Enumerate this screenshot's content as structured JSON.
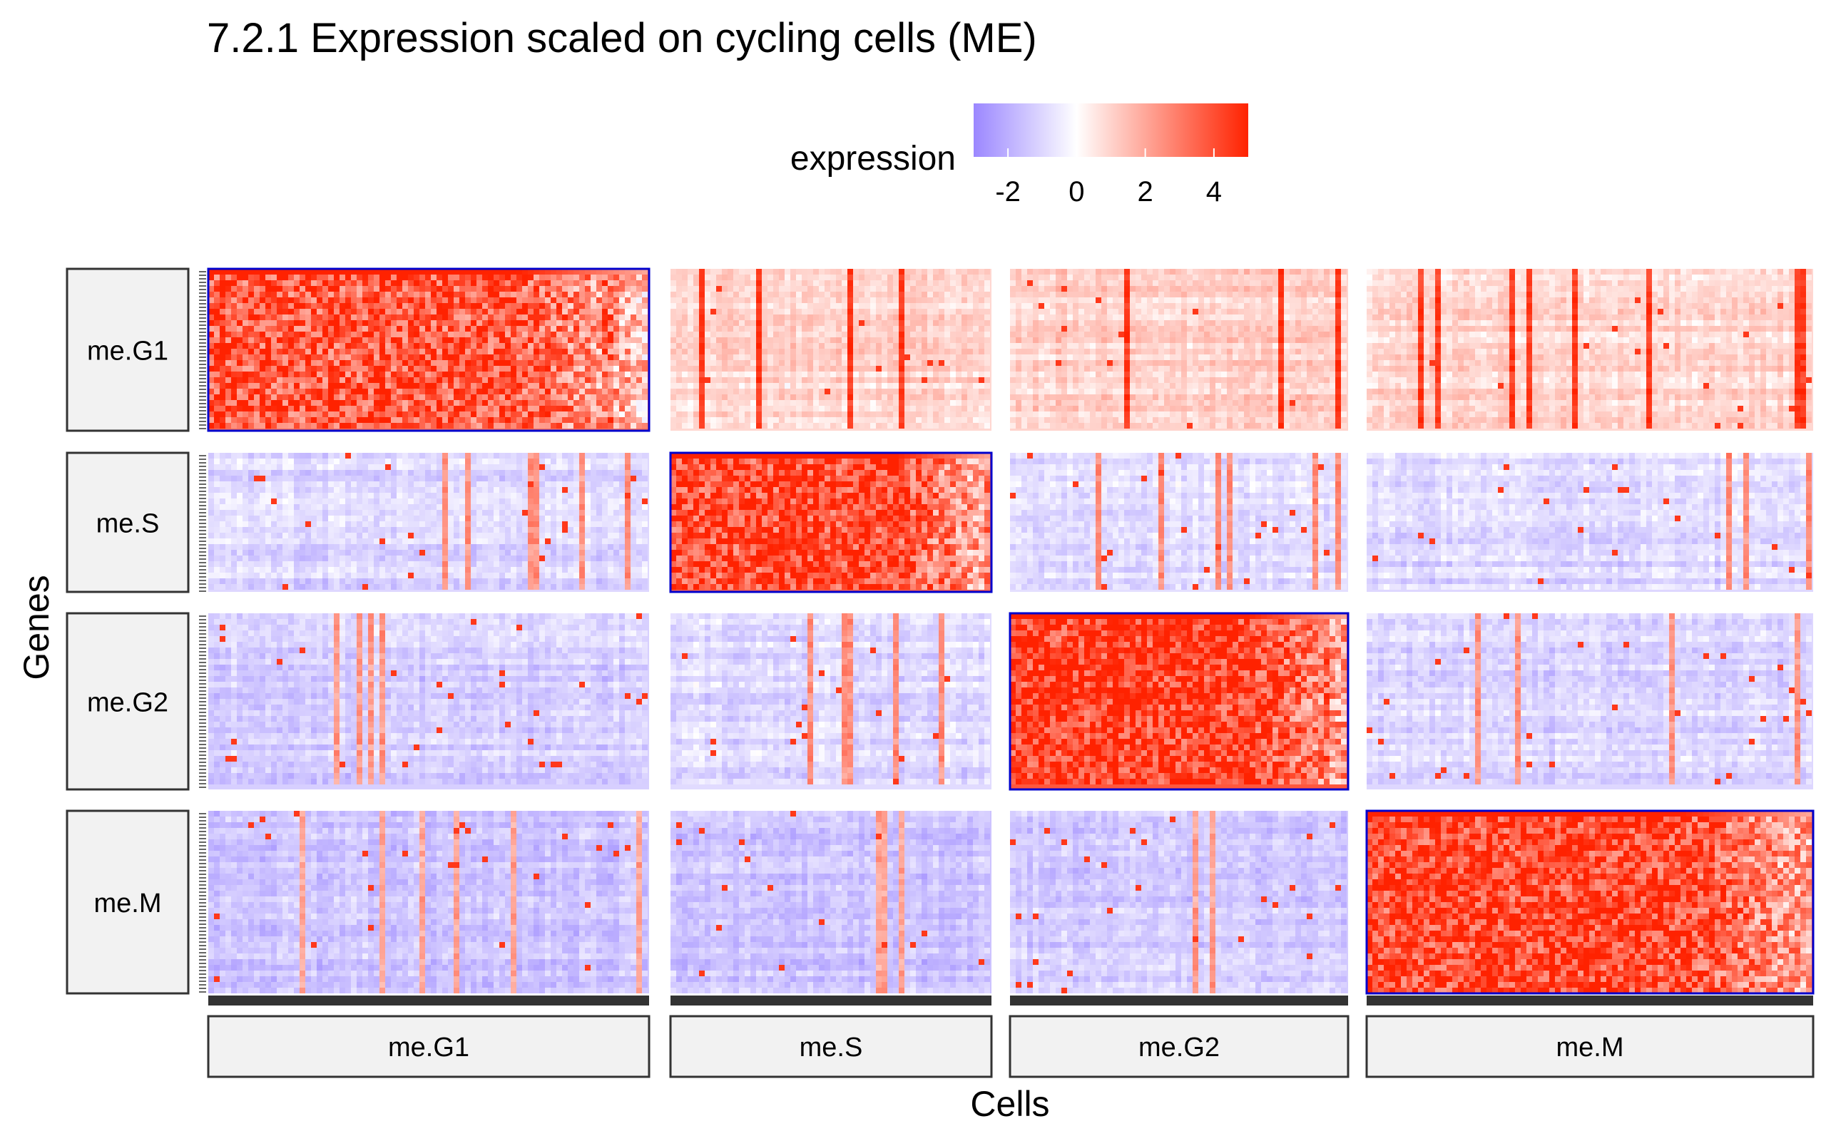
{
  "chart_data": {
    "type": "heatmap",
    "title": "7.2.1 Expression scaled on cycling cells (ME)",
    "xlabel": "Cells",
    "ylabel": "Genes",
    "legend": {
      "title": "expression",
      "ticks": [
        "-2",
        "0",
        "2",
        "4"
      ],
      "tick_values": [
        -2,
        0,
        2,
        4
      ],
      "range": [
        -3,
        5
      ],
      "colors": {
        "low": "#9b87ff",
        "mid": "#ffffff",
        "high": "#ff2200"
      },
      "placement": "top"
    },
    "row_groups": [
      "me.G1",
      "me.S",
      "me.G2",
      "me.M"
    ],
    "column_groups": [
      "me.G1",
      "me.S",
      "me.G2",
      "me.M"
    ],
    "highlight_color": "#0000cc",
    "mean_expression": [
      [
        3.2,
        0.9,
        1.0,
        0.9
      ],
      [
        -1.0,
        3.5,
        -0.8,
        -1.0
      ],
      [
        -1.2,
        -0.9,
        3.8,
        -1.0
      ],
      [
        -1.4,
        -1.5,
        -1.3,
        3.6
      ]
    ],
    "highlighted_blocks": [
      [
        "me.G1",
        "me.G1"
      ],
      [
        "me.S",
        "me.S"
      ],
      [
        "me.G2",
        "me.G2"
      ],
      [
        "me.M",
        "me.M"
      ]
    ]
  }
}
